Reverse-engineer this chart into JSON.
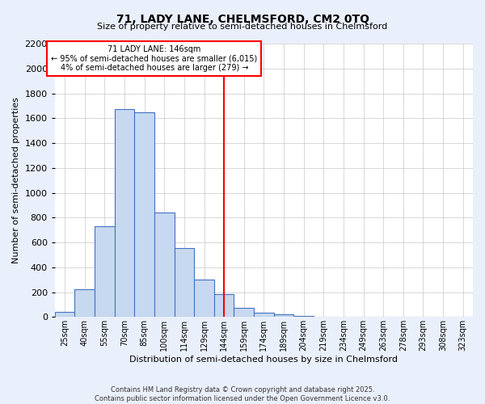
{
  "title": "71, LADY LANE, CHELMSFORD, CM2 0TQ",
  "subtitle": "Size of property relative to semi-detached houses in Chelmsford",
  "xlabel": "Distribution of semi-detached houses by size in Chelmsford",
  "ylabel": "Number of semi-detached properties",
  "bin_labels": [
    "25sqm",
    "40sqm",
    "55sqm",
    "70sqm",
    "85sqm",
    "100sqm",
    "114sqm",
    "129sqm",
    "144sqm",
    "159sqm",
    "174sqm",
    "189sqm",
    "204sqm",
    "219sqm",
    "234sqm",
    "249sqm",
    "263sqm",
    "278sqm",
    "293sqm",
    "308sqm",
    "323sqm"
  ],
  "bin_values": [
    40,
    220,
    730,
    1670,
    1650,
    840,
    555,
    300,
    185,
    75,
    35,
    20,
    10,
    5,
    2,
    1,
    0,
    0,
    0,
    0,
    0
  ],
  "bar_color": "#c6d9f0",
  "bar_edge_color": "#4472c4",
  "vline_color": "red",
  "annotation_title": "71 LADY LANE: 146sqm",
  "annotation_line1": "← 95% of semi-detached houses are smaller (6,015)",
  "annotation_line2": "4% of semi-detached houses are larger (279) →",
  "annotation_box_color": "white",
  "annotation_box_edge": "red",
  "ylim": [
    0,
    2200
  ],
  "yticks": [
    0,
    200,
    400,
    600,
    800,
    1000,
    1200,
    1400,
    1600,
    1800,
    2000,
    2200
  ],
  "footer_line1": "Contains HM Land Registry data © Crown copyright and database right 2025.",
  "footer_line2": "Contains public sector information licensed under the Open Government Licence v3.0.",
  "background_color": "#eaf0fb",
  "plot_background": "white",
  "grid_color": "#c8c8c8"
}
